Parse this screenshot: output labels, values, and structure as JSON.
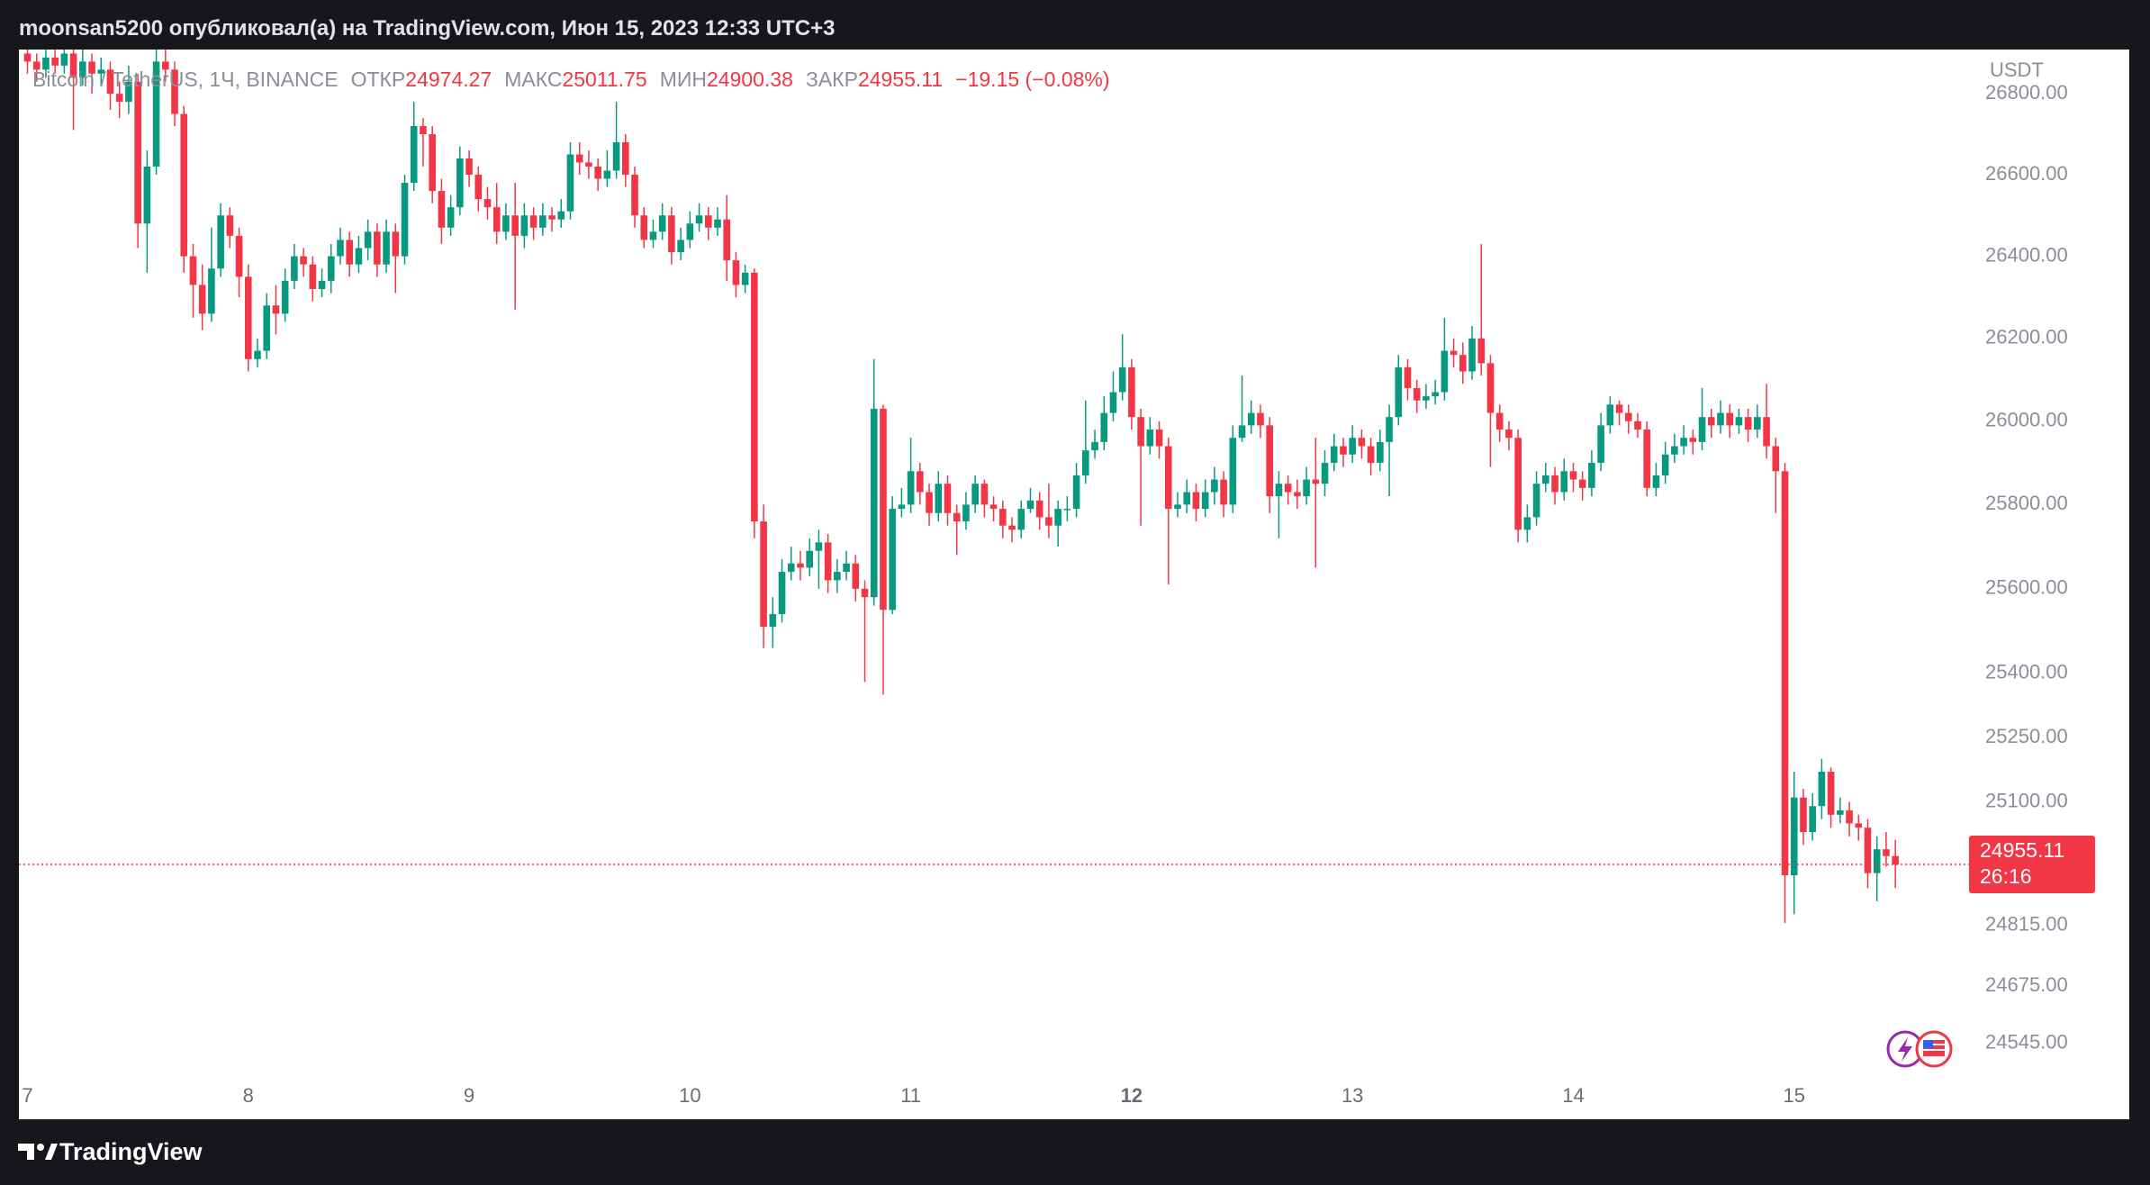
{
  "header": "moonsan5200 опубликовал(а) на TradingView.com, Июн 15, 2023 12:33 UTC+3",
  "footer_brand": "TradingView",
  "chart_data": {
    "type": "candlestick",
    "title": "Bitcoin / TetherUS, 1Ч, BINANCE",
    "currency": "USDT",
    "legend": {
      "open_label": "ОТКР",
      "high_label": "МАКС",
      "low_label": "МИН",
      "close_label": "ЗАКР",
      "change": "−19.15 (−0.08%)"
    },
    "countdown": "26:16",
    "log": true,
    "grid": false,
    "up_color": "#089981",
    "down_color": "#f23645",
    "ylim": [
      24471,
      26910
    ],
    "yticks": [
      {
        "value": 26800,
        "label": "26800.00"
      },
      {
        "value": 26600,
        "label": "26600.00"
      },
      {
        "value": 26400,
        "label": "26400.00"
      },
      {
        "value": 26200,
        "label": "26200.00"
      },
      {
        "value": 26000,
        "label": "26000.00"
      },
      {
        "value": 25800,
        "label": "25800.00"
      },
      {
        "value": 25600,
        "label": "25600.00"
      },
      {
        "value": 25400,
        "label": "25400.00"
      },
      {
        "value": 25250,
        "label": "25250.00"
      },
      {
        "value": 25100,
        "label": "25100.00"
      },
      {
        "value": 24815,
        "label": "24815.00"
      },
      {
        "value": 24675,
        "label": "24675.00"
      },
      {
        "value": 24545,
        "label": "24545.00"
      }
    ],
    "categories": [
      "7",
      null,
      null,
      null,
      null,
      null,
      null,
      null,
      null,
      null,
      null,
      null,
      null,
      null,
      null,
      null,
      null,
      null,
      null,
      null,
      null,
      null,
      null,
      null,
      "8",
      null,
      null,
      null,
      null,
      null,
      null,
      null,
      null,
      null,
      null,
      null,
      null,
      null,
      null,
      null,
      null,
      null,
      null,
      null,
      null,
      null,
      null,
      null,
      "9",
      null,
      null,
      null,
      null,
      null,
      null,
      null,
      null,
      null,
      null,
      null,
      null,
      null,
      null,
      null,
      null,
      null,
      null,
      null,
      null,
      null,
      null,
      null,
      "10",
      null,
      null,
      null,
      null,
      null,
      null,
      null,
      null,
      null,
      null,
      null,
      null,
      null,
      null,
      null,
      null,
      null,
      null,
      null,
      null,
      null,
      null,
      null,
      "11",
      null,
      null,
      null,
      null,
      null,
      null,
      null,
      null,
      null,
      null,
      null,
      null,
      null,
      null,
      null,
      null,
      null,
      null,
      null,
      null,
      null,
      null,
      null,
      "12",
      null,
      null,
      null,
      null,
      null,
      null,
      null,
      null,
      null,
      null,
      null,
      null,
      null,
      null,
      null,
      null,
      null,
      null,
      null,
      null,
      null,
      null,
      null,
      "13",
      null,
      null,
      null,
      null,
      null,
      null,
      null,
      null,
      null,
      null,
      null,
      null,
      null,
      null,
      null,
      null,
      null,
      null,
      null,
      null,
      null,
      null,
      null,
      "14",
      null,
      null,
      null,
      null,
      null,
      null,
      null,
      null,
      null,
      null,
      null,
      null,
      null,
      null,
      null,
      null,
      null,
      null,
      null,
      null,
      null,
      null,
      null,
      "15",
      null,
      null,
      null,
      null,
      null,
      null,
      null,
      null,
      null,
      null,
      null
    ],
    "bold_category": "12",
    "open": [
      26900,
      26880,
      26860,
      26890,
      26870,
      26900,
      26840,
      26880,
      26850,
      26860,
      26800,
      26780,
      26830,
      26480,
      26620,
      26880,
      26860,
      26750,
      26400,
      26330,
      26260,
      26370,
      26500,
      26450,
      26350,
      26150,
      26170,
      26280,
      26260,
      26340,
      26400,
      26380,
      26320,
      26340,
      26400,
      26440,
      26380,
      26420,
      26460,
      26380,
      26460,
      26400,
      26580,
      26720,
      26700,
      26560,
      26470,
      26520,
      26640,
      26600,
      26540,
      26520,
      26460,
      26500,
      26450,
      26500,
      26470,
      26500,
      26490,
      26510,
      26650,
      26630,
      26620,
      26590,
      26610,
      26680,
      26600,
      26500,
      26440,
      26460,
      26500,
      26410,
      26440,
      26480,
      26500,
      26470,
      26490,
      26390,
      26330,
      26360,
      25760,
      25510,
      25540,
      25640,
      25660,
      25650,
      25690,
      25710,
      25620,
      25640,
      25660,
      25600,
      25580,
      26030,
      25550,
      25790,
      25800,
      25880,
      25830,
      25780,
      25850,
      25780,
      25760,
      25800,
      25850,
      25800,
      25790,
      25750,
      25740,
      25790,
      25810,
      25770,
      25750,
      25790,
      25790,
      25870,
      25930,
      25950,
      26020,
      26070,
      26130,
      26010,
      25940,
      25980,
      25940,
      25790,
      25800,
      25830,
      25790,
      25830,
      25860,
      25800,
      25960,
      25990,
      26020,
      25990,
      25820,
      25850,
      25830,
      25820,
      25860,
      25850,
      25900,
      25940,
      25920,
      25960,
      25940,
      25900,
      25950,
      26010,
      26130,
      26080,
      26050,
      26060,
      26070,
      26170,
      26160,
      26120,
      26200,
      26140,
      26020,
      25980,
      25960,
      25740,
      25770,
      25850,
      25870,
      25830,
      25880,
      25860,
      25840,
      25900,
      25990,
      26040,
      26020,
      26000,
      25980,
      25840,
      25870,
      25920,
      25940,
      25960,
      25950,
      26010,
      25990,
      26020,
      25990,
      26010,
      25980,
      26010,
      25940,
      25880,
      24930,
      25110,
      25030,
      25090,
      25170,
      25070,
      25080,
      25050,
      25040,
      24935,
      24990,
      24974.27
    ],
    "high": [
      26930,
      26900,
      26920,
      26910,
      26930,
      26920,
      26910,
      26900,
      26890,
      26880,
      26830,
      26870,
      26850,
      26660,
      26920,
      26910,
      26880,
      26770,
      26430,
      26380,
      26470,
      26530,
      26520,
      26470,
      26380,
      26200,
      26310,
      26330,
      26370,
      26430,
      26420,
      26400,
      26370,
      26430,
      26470,
      26460,
      26450,
      26490,
      26480,
      26490,
      26480,
      26600,
      26780,
      26740,
      26720,
      26590,
      26550,
      26670,
      26660,
      26620,
      26570,
      26580,
      26530,
      26580,
      26530,
      26520,
      26530,
      26520,
      26540,
      26680,
      26680,
      26660,
      26640,
      26660,
      26780,
      26700,
      26620,
      26520,
      26490,
      26530,
      26520,
      26470,
      26510,
      26530,
      26520,
      26520,
      26550,
      26410,
      26380,
      26370,
      25800,
      25580,
      25670,
      25700,
      25690,
      25720,
      25740,
      25730,
      25670,
      25690,
      25680,
      25620,
      26150,
      26040,
      25820,
      25840,
      25960,
      25900,
      25850,
      25880,
      25870,
      25800,
      25830,
      25870,
      25860,
      25820,
      25810,
      25770,
      25810,
      25840,
      25830,
      25850,
      25810,
      25820,
      25900,
      26050,
      25980,
      26060,
      26120,
      26210,
      26150,
      26030,
      26010,
      26000,
      25960,
      25830,
      25860,
      25850,
      25860,
      25890,
      25880,
      25990,
      26110,
      26050,
      26040,
      26010,
      25880,
      25870,
      25860,
      25890,
      25960,
      25930,
      25970,
      25960,
      25990,
      25980,
      25960,
      25980,
      26040,
      26160,
      26150,
      26100,
      26090,
      26100,
      26250,
      26200,
      26190,
      26230,
      26430,
      26160,
      26040,
      26000,
      25980,
      25800,
      25880,
      25900,
      25890,
      25910,
      25900,
      25880,
      25930,
      26020,
      26060,
      26050,
      26040,
      26020,
      26000,
      25900,
      25950,
      25970,
      25990,
      25980,
      26080,
      26030,
      26050,
      26040,
      26030,
      26030,
      26040,
      26090,
      25960,
      25900,
      25170,
      25130,
      25120,
      25200,
      25180,
      25110,
      25100,
      25070,
      25060,
      25020,
      25030,
      25011.75
    ],
    "low": [
      26850,
      26830,
      26840,
      26850,
      26850,
      26710,
      26820,
      26800,
      26820,
      26760,
      26740,
      26750,
      26420,
      26360,
      26600,
      26830,
      26720,
      26360,
      26250,
      26220,
      26240,
      26350,
      26420,
      26300,
      26120,
      26130,
      26150,
      26210,
      26240,
      26320,
      26350,
      26290,
      26300,
      26310,
      26380,
      26350,
      26360,
      26390,
      26350,
      26360,
      26310,
      26380,
      26560,
      26620,
      26530,
      26430,
      26450,
      26500,
      26570,
      26510,
      26490,
      26430,
      26440,
      26270,
      26420,
      26440,
      26450,
      26460,
      26470,
      26490,
      26600,
      26590,
      26560,
      26570,
      26590,
      26570,
      26470,
      26420,
      26420,
      26440,
      26380,
      26390,
      26420,
      26460,
      26440,
      26450,
      26340,
      26300,
      26310,
      25720,
      25460,
      25460,
      25520,
      25620,
      25620,
      25630,
      25600,
      25590,
      25590,
      25620,
      25570,
      25380,
      25560,
      25350,
      25540,
      25770,
      25780,
      25800,
      25750,
      25760,
      25750,
      25680,
      25740,
      25780,
      25770,
      25760,
      25720,
      25710,
      25720,
      25780,
      25740,
      25720,
      25700,
      25760,
      25770,
      25850,
      25910,
      25930,
      26000,
      26050,
      25980,
      25750,
      25920,
      25910,
      25610,
      25770,
      25780,
      25760,
      25770,
      25800,
      25770,
      25780,
      25950,
      25970,
      25960,
      25780,
      25720,
      25800,
      25790,
      25800,
      25650,
      25820,
      25880,
      25890,
      25900,
      25910,
      25870,
      25880,
      25820,
      25990,
      26050,
      26020,
      26030,
      26040,
      26050,
      26130,
      26090,
      26100,
      26110,
      25890,
      25950,
      25930,
      25710,
      25710,
      25750,
      25830,
      25800,
      25810,
      25830,
      25810,
      25820,
      25880,
      25970,
      25990,
      25970,
      25960,
      25820,
      25820,
      25850,
      25900,
      25920,
      25920,
      25930,
      25960,
      25970,
      25960,
      25970,
      25950,
      25960,
      25910,
      25780,
      24820,
      24840,
      25000,
      25010,
      25060,
      25040,
      25050,
      25020,
      25010,
      24900,
      24870,
      24950,
      24900.38
    ],
    "close": [
      26880,
      26860,
      26890,
      26870,
      26900,
      26840,
      26880,
      26850,
      26860,
      26800,
      26780,
      26830,
      26480,
      26620,
      26880,
      26860,
      26750,
      26400,
      26330,
      26260,
      26370,
      26500,
      26450,
      26350,
      26150,
      26170,
      26280,
      26260,
      26340,
      26400,
      26380,
      26320,
      26340,
      26400,
      26440,
      26380,
      26420,
      26460,
      26380,
      26460,
      26400,
      26580,
      26720,
      26700,
      26560,
      26470,
      26520,
      26640,
      26600,
      26540,
      26520,
      26460,
      26500,
      26450,
      26500,
      26470,
      26500,
      26490,
      26510,
      26650,
      26630,
      26620,
      26590,
      26610,
      26680,
      26600,
      26500,
      26440,
      26460,
      26500,
      26410,
      26440,
      26480,
      26500,
      26470,
      26490,
      26390,
      26330,
      26360,
      25760,
      25510,
      25540,
      25640,
      25660,
      25650,
      25690,
      25710,
      25620,
      25640,
      25660,
      25600,
      25580,
      26030,
      25550,
      25790,
      25800,
      25880,
      25830,
      25780,
      25850,
      25780,
      25760,
      25800,
      25850,
      25800,
      25790,
      25750,
      25740,
      25790,
      25810,
      25770,
      25750,
      25790,
      25790,
      25870,
      25930,
      25950,
      26020,
      26070,
      26130,
      26010,
      25940,
      25980,
      25940,
      25790,
      25800,
      25830,
      25790,
      25830,
      25860,
      25800,
      25960,
      25990,
      26020,
      25990,
      25820,
      25850,
      25830,
      25820,
      25860,
      25850,
      25900,
      25940,
      25920,
      25960,
      25940,
      25900,
      25950,
      26010,
      26130,
      26080,
      26050,
      26060,
      26070,
      26170,
      26160,
      26120,
      26200,
      26140,
      26020,
      25980,
      25960,
      25740,
      25770,
      25850,
      25870,
      25830,
      25880,
      25860,
      25840,
      25900,
      25990,
      26040,
      26020,
      26000,
      25980,
      25840,
      25870,
      25920,
      25940,
      25960,
      25950,
      26010,
      25990,
      26020,
      25990,
      26010,
      25980,
      26010,
      25940,
      25880,
      24930,
      25110,
      25030,
      25090,
      25170,
      25070,
      25080,
      25050,
      25040,
      24935,
      24990,
      24974.27,
      24955.11
    ]
  }
}
